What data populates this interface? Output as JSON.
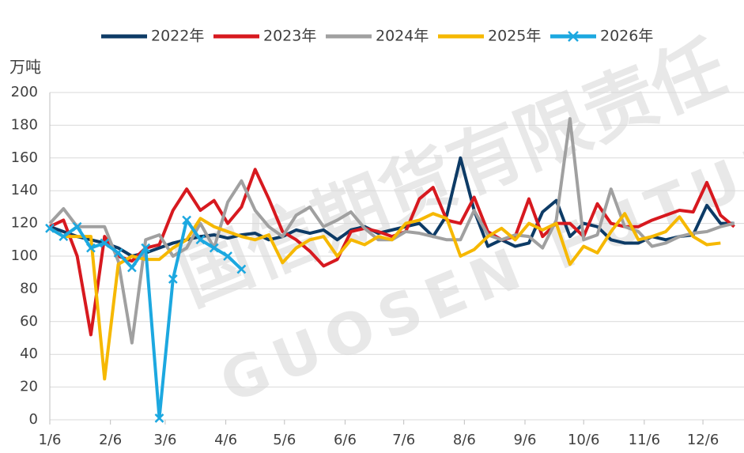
{
  "chart_data": {
    "type": "line",
    "y_unit": "万吨",
    "watermark": [
      "国信期货有限责任",
      "GUOSEN FUTURES"
    ],
    "x": [
      0,
      7,
      14,
      21,
      28,
      35,
      42,
      49,
      56,
      63,
      70,
      77,
      84,
      91,
      98,
      105,
      112,
      119,
      126,
      133,
      140,
      147,
      154,
      161,
      168,
      175,
      182,
      189,
      196,
      203,
      210,
      217,
      224,
      231,
      238,
      245,
      252,
      259,
      266,
      273,
      280,
      287,
      294,
      301,
      308,
      315,
      322,
      329,
      336,
      343,
      350
    ],
    "xlim": [
      0,
      355
    ],
    "xticks": [
      {
        "value": 0,
        "label": "1/6"
      },
      {
        "value": 31,
        "label": "2/6"
      },
      {
        "value": 59,
        "label": "3/6"
      },
      {
        "value": 90,
        "label": "4/6"
      },
      {
        "value": 120,
        "label": "5/6"
      },
      {
        "value": 151,
        "label": "6/6"
      },
      {
        "value": 181,
        "label": "7/6"
      },
      {
        "value": 212,
        "label": "8/6"
      },
      {
        "value": 243,
        "label": "9/6"
      },
      {
        "value": 273,
        "label": "10/6"
      },
      {
        "value": 304,
        "label": "11/6"
      },
      {
        "value": 334,
        "label": "12/6"
      }
    ],
    "ylim": [
      0,
      200
    ],
    "yticks": [
      0,
      20,
      40,
      60,
      80,
      100,
      120,
      140,
      160,
      180,
      200
    ],
    "grid": true,
    "legend": "top",
    "series": [
      {
        "name": "2022年",
        "color": "#0d3b66",
        "values": [
          118,
          115,
          112,
          110,
          108,
          105,
          100,
          102,
          105,
          108,
          110,
          112,
          113,
          111,
          113,
          114,
          110,
          112,
          116,
          114,
          116,
          110,
          116,
          118,
          114,
          116,
          118,
          120,
          112,
          125,
          160,
          128,
          106,
          110,
          106,
          108,
          127,
          134,
          112,
          120,
          118,
          110,
          108,
          108,
          112,
          110,
          112,
          113,
          131,
          120,
          120
        ]
      },
      {
        "name": "2023年",
        "color": "#d7191f",
        "values": [
          118,
          122,
          100,
          52,
          112,
          100,
          97,
          105,
          107,
          128,
          141,
          128,
          134,
          120,
          130,
          153,
          135,
          115,
          110,
          103,
          94,
          98,
          115,
          117,
          115,
          112,
          115,
          135,
          142,
          122,
          120,
          136,
          115,
          110,
          112,
          135,
          112,
          120,
          120,
          112,
          132,
          120,
          118,
          118,
          122,
          125,
          128,
          127,
          145,
          125,
          118
        ]
      },
      {
        "name": "2024年",
        "color": "#a0a0a0",
        "values": [
          120,
          129,
          118,
          118,
          118,
          97,
          47,
          110,
          113,
          100,
          105,
          120,
          105,
          133,
          146,
          128,
          118,
          112,
          125,
          130,
          118,
          122,
          127,
          117,
          110,
          110,
          115,
          114,
          112,
          110,
          110,
          128,
          113,
          110,
          113,
          112,
          105,
          122,
          184,
          110,
          113,
          141,
          118,
          115,
          106,
          108,
          112,
          114,
          115,
          118,
          120
        ]
      },
      {
        "name": "2025年",
        "color": "#f6b800",
        "values": [
          117,
          112,
          112,
          112,
          25,
          95,
          100,
          98,
          98,
          105,
          110,
          123,
          118,
          115,
          112,
          110,
          113,
          96,
          105,
          110,
          112,
          100,
          110,
          107,
          112,
          110,
          120,
          122,
          126,
          123,
          100,
          104,
          112,
          117,
          110,
          120,
          116,
          120,
          95,
          106,
          102,
          115,
          126,
          110,
          112,
          115,
          124,
          112,
          107,
          108,
          null
        ]
      },
      {
        "name": "2026年",
        "color": "#1ca8e0",
        "marker": "x",
        "values": [
          117,
          112,
          118,
          105,
          108,
          102,
          93,
          105,
          1,
          86,
          122,
          110,
          105,
          100,
          92,
          null,
          null,
          null,
          null,
          null,
          null,
          null,
          null,
          null,
          null,
          null,
          null,
          null,
          null,
          null,
          null,
          null,
          null,
          null,
          null,
          null,
          null,
          null,
          null,
          null,
          null,
          null,
          null,
          null,
          null,
          null,
          null,
          null,
          null,
          null,
          null
        ]
      }
    ]
  }
}
